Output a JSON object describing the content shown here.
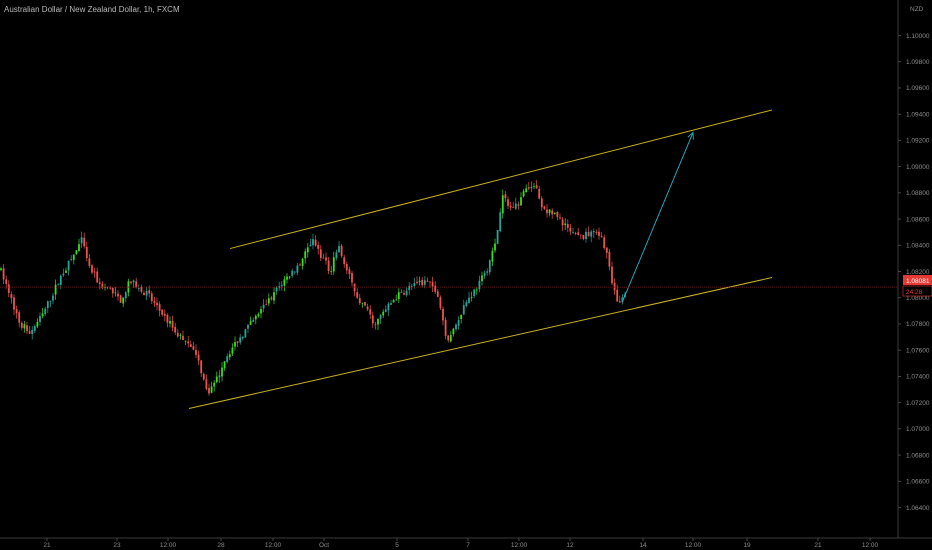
{
  "chart_title": "Australian Dollar / New Zealand Dollar, 1h, FXCM",
  "chart_data": {
    "type": "candlestick",
    "y_axis_unit": "NZD",
    "y_range": [
      1.0616,
      1.1008
    ],
    "y_ticks": [
      "1.10000",
      "1.09800",
      "1.09600",
      "1.09400",
      "1.09200",
      "1.09000",
      "1.08800",
      "1.08600",
      "1.08400",
      "1.08200",
      "1.08000",
      "1.07800",
      "1.07600",
      "1.07400",
      "1.07200",
      "1.07000",
      "1.06800",
      "1.06600",
      "1.06400"
    ],
    "x_ticks": [
      "21",
      "23",
      "12:00",
      "28",
      "12:00",
      "Oct",
      "5",
      "7",
      "12:00",
      "12",
      "14",
      "12:00",
      "19",
      "21",
      "12:00"
    ],
    "current_price": "1.08081",
    "countdown": "24:28",
    "price_path": [
      [
        0,
        1.0822
      ],
      [
        8,
        1.0806
      ],
      [
        20,
        1.078
      ],
      [
        30,
        1.0774
      ],
      [
        42,
        1.0786
      ],
      [
        52,
        1.0802
      ],
      [
        62,
        1.0818
      ],
      [
        72,
        1.083
      ],
      [
        82,
        1.0844
      ],
      [
        90,
        1.0822
      ],
      [
        100,
        1.081
      ],
      [
        110,
        1.0806
      ],
      [
        120,
        1.0798
      ],
      [
        130,
        1.0812
      ],
      [
        140,
        1.0808
      ],
      [
        150,
        1.08
      ],
      [
        160,
        1.079
      ],
      [
        170,
        1.078
      ],
      [
        180,
        1.077
      ],
      [
        190,
        1.0766
      ],
      [
        200,
        1.0748
      ],
      [
        207,
        1.0728
      ],
      [
        215,
        1.0734
      ],
      [
        225,
        1.0754
      ],
      [
        240,
        1.077
      ],
      [
        255,
        1.0784
      ],
      [
        270,
        1.08
      ],
      [
        285,
        1.0814
      ],
      [
        300,
        1.0826
      ],
      [
        312,
        1.0844
      ],
      [
        320,
        1.0834
      ],
      [
        330,
        1.082
      ],
      [
        338,
        1.084
      ],
      [
        348,
        1.0818
      ],
      [
        358,
        1.08
      ],
      [
        368,
        1.0788
      ],
      [
        375,
        1.078
      ],
      [
        385,
        1.079
      ],
      [
        395,
        1.08
      ],
      [
        410,
        1.0808
      ],
      [
        425,
        1.0812
      ],
      [
        437,
        1.0806
      ],
      [
        447,
        1.0768
      ],
      [
        455,
        1.0778
      ],
      [
        465,
        1.0796
      ],
      [
        475,
        1.0806
      ],
      [
        485,
        1.0818
      ],
      [
        495,
        1.084
      ],
      [
        503,
        1.0878
      ],
      [
        510,
        1.0868
      ],
      [
        518,
        1.0872
      ],
      [
        525,
        1.0884
      ],
      [
        533,
        1.0888
      ],
      [
        542,
        1.087
      ],
      [
        552,
        1.0864
      ],
      [
        562,
        1.0858
      ],
      [
        572,
        1.0848
      ],
      [
        582,
        1.0846
      ],
      [
        592,
        1.085
      ],
      [
        600,
        1.0846
      ],
      [
        606,
        1.0838
      ],
      [
        612,
        1.081
      ],
      [
        618,
        1.0794
      ],
      [
        624,
        1.0804
      ],
      [
        628,
        1.0808
      ]
    ],
    "annotations": {
      "channel_upper": [
        [
          230,
          1.08375
        ],
        [
          772,
          1.09432
        ]
      ],
      "channel_lower": [
        [
          189,
          1.07155
        ],
        [
          772,
          1.08154
        ]
      ],
      "projection_arrow": [
        [
          622,
          1.07962
        ],
        [
          693,
          1.0926
        ]
      ]
    },
    "colors": {
      "bull": "#26a69a",
      "bullBright": "#39e01a",
      "bear": "#ef5350",
      "channel": "#c9b020",
      "arrow": "#1fb6c8",
      "price_line": "#7a1d1d",
      "price_tag": "#e53935"
    }
  }
}
